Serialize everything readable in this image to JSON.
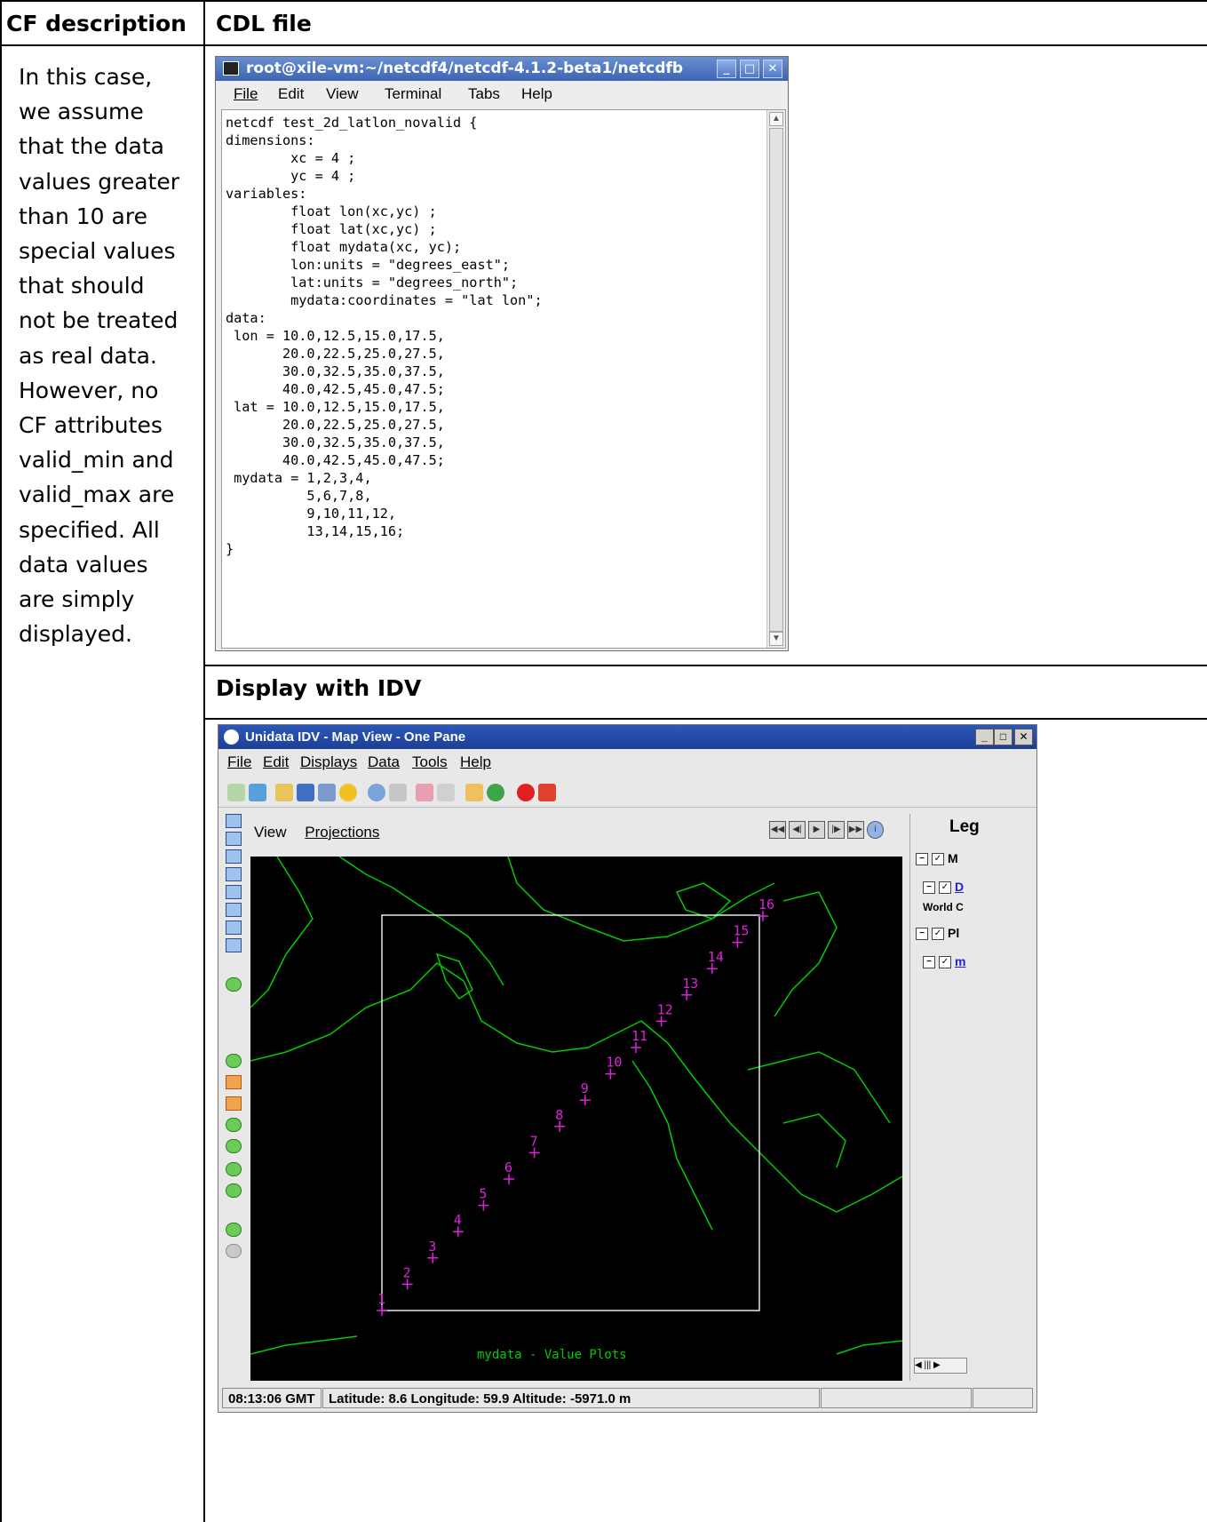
{
  "table": {
    "col1_header": "CF description",
    "col2_header": "CDL file",
    "display_header": "Display with IDV",
    "description": "In this case,\nwe assume\nthat the data\nvalues greater\nthan 10 are\nspecial values\nthat should\nnot be treated\nas real data.\nHowever, no\nCF attributes\nvalid_min and\nvalid_max are\nspecified. All\ndata values\nare simply\ndisplayed."
  },
  "terminal": {
    "title": "root@xile-vm:~/netcdf4/netcdf-4.1.2-beta1/netcdfb",
    "menu": [
      "File",
      "Edit",
      "View",
      "Terminal",
      "Tabs",
      "Help"
    ],
    "code": "netcdf test_2d_latlon_novalid {\ndimensions:\n        xc = 4 ;\n        yc = 4 ;\nvariables:\n        float lon(xc,yc) ;\n        float lat(xc,yc) ;\n        float mydata(xc, yc);\n        lon:units = \"degrees_east\";\n        lat:units = \"degrees_north\";\n        mydata:coordinates = \"lat lon\";\ndata:\n lon = 10.0,12.5,15.0,17.5,\n       20.0,22.5,25.0,27.5,\n       30.0,32.5,35.0,37.5,\n       40.0,42.5,45.0,47.5;\n lat = 10.0,12.5,15.0,17.5,\n       20.0,22.5,25.0,27.5,\n       30.0,32.5,35.0,37.5,\n       40.0,42.5,45.0,47.5;\n mydata = 1,2,3,4,\n          5,6,7,8,\n          9,10,11,12,\n          13,14,15,16;\n}"
  },
  "idv": {
    "title": "Unidata IDV - Map View - One Pane",
    "menu": [
      "File",
      "Edit",
      "Displays",
      "Data",
      "Tools",
      "Help"
    ],
    "view_menu": [
      "View",
      "Projections"
    ],
    "legend_title": "Leg",
    "legend_rows": [
      "M",
      "D",
      "World C",
      "Pl",
      "m"
    ],
    "map_caption": "mydata - Value Plots",
    "plot_values": [
      "1",
      "2",
      "3",
      "4",
      "5",
      "6",
      "7",
      "8",
      "9",
      "10",
      "11",
      "12",
      "13",
      "14",
      "15",
      "16"
    ],
    "status": {
      "time": "08:13:06 GMT",
      "coords": "Latitude:  8.6    Longitude:  59.9   Altitude:  -5971.0 m"
    },
    "colors": {
      "coast": "#00cc00",
      "plot": "#e020e0",
      "box": "#e8e8e8"
    }
  }
}
